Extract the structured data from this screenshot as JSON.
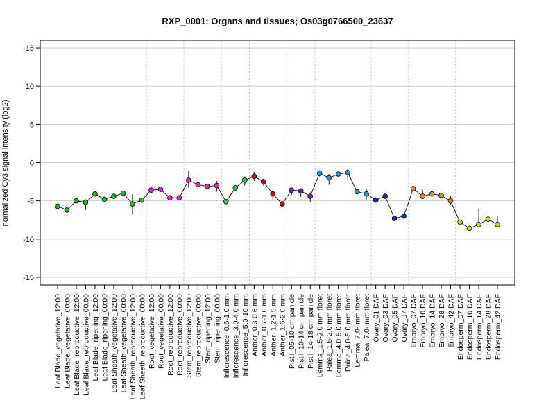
{
  "chart_data": {
    "type": "line",
    "title": "RXP_0001: Organs and tissues; Os03g0766500_23637",
    "xlabel": "",
    "ylabel": "normalized Cy3 signal intensity (log2)",
    "ylim": [
      -16,
      16
    ],
    "yticks": [
      -15,
      -10,
      -5,
      0,
      5,
      10,
      15
    ],
    "grid": true,
    "categories": [
      "Leaf Blade_vegetative_12:00",
      "Leaf Blade_vegetative_00:00",
      "Leaf Blade_reproductive_12:00",
      "Leaf Blade_reproductive_00:00",
      "Leaf Blade_ripening_12:00",
      "Leaf Blade_ripening_00:00",
      "Leaf Sheath_vegetative_12:00",
      "Leaf Sheath_vegetative_00:00",
      "Leaf Sheath_reproductive_12:00",
      "Leaf Sheath_reproductive_00:00",
      "Root_vegetative_12:00",
      "Root_vegetative_00:00",
      "Root_reproductive_12:00",
      "Root_reproductive_00:00",
      "Stem_reproductive_12:00",
      "Stem_reproductive_00:00",
      "Stem_ripening_12:00",
      "Stem_ripening_00:00",
      "Inflorescence_0.6-1.0 mm",
      "Inflorescence_3.0-4.0 mm",
      "Inflorescence_5.0-10 mm",
      "Anther_0.3-0.6 mm",
      "Anther_0.7-1.0 mm",
      "Anther_1.2-1.5 mm",
      "Anther_1.6-2.0 mm",
      "Pistil_05-10 cm panicle",
      "Pistil_10-14 cm panicle",
      "Pistil_14-18 cm panicle",
      "Lemma_1.5-2.0 mm floret",
      "Palea_1.5-2.0 mm floret",
      "Lemma_4.0-5.0 mm floret",
      "Palea_4.0-5.0 mm floret",
      "Lemma_7.0- mm floret",
      "Palea_7.0- mm floret",
      "Ovary_01 DAF",
      "Ovary_03 DAF",
      "Ovary_05 DAF",
      "Ovary_07 DAF",
      "Embryo_07 DAF",
      "Embryo_10 DAF",
      "Embryo_14 DAF",
      "Embryo_28 DAF",
      "Embryo_42 DAF",
      "Endosperm_07 DAF",
      "Endosperm_10 DAF",
      "Endosperm_14 DAF",
      "Endosperm_28 DAF",
      "Endosperm_42 DAF"
    ],
    "series": [
      {
        "values": [
          -5.7,
          -6.2,
          -5.0,
          -5.2,
          -4.1,
          -4.8,
          -4.4,
          -4.0,
          -5.4,
          -4.9,
          -3.6,
          -3.5,
          -4.6,
          -4.6,
          -2.3,
          -2.9,
          -3.1,
          -3.0,
          -5.1,
          -3.3,
          -2.3,
          -1.8,
          -2.5,
          -4.1,
          -5.4,
          -3.6,
          -3.7,
          -4.4,
          -1.4,
          -2.0,
          -1.5,
          -1.3,
          -3.8,
          -4.1,
          -4.9,
          -4.4,
          -7.3,
          -7.0,
          -3.4,
          -4.4,
          -4.1,
          -4.3,
          -5.0,
          -7.8,
          -8.6,
          -8.1,
          -7.4,
          -8.1
        ],
        "error_low": [
          -6.1,
          -6.4,
          -5.2,
          -6.2,
          -4.3,
          -5.0,
          -4.7,
          -4.3,
          -6.8,
          -6.4,
          -4.0,
          -3.8,
          -4.8,
          -4.8,
          -3.3,
          -3.8,
          -3.4,
          -3.8,
          -5.3,
          -3.6,
          -3.0,
          -2.4,
          -3.0,
          -4.8,
          -5.6,
          -4.2,
          -4.5,
          -5.2,
          -1.8,
          -2.9,
          -1.8,
          -2.3,
          -4.3,
          -4.8,
          -5.2,
          -4.6,
          -7.6,
          -7.3,
          -3.6,
          -4.6,
          -4.4,
          -4.5,
          -5.5,
          -8.1,
          -8.8,
          -8.5,
          -8.2,
          -8.4
        ],
        "error_high": [
          -5.4,
          -6.0,
          -4.8,
          -4.8,
          -3.9,
          -4.6,
          -4.1,
          -3.7,
          -4.1,
          -4.0,
          -3.2,
          -3.2,
          -4.4,
          -4.4,
          -1.1,
          -1.6,
          -2.8,
          -2.4,
          -4.8,
          -3.0,
          -1.8,
          -1.2,
          -2.1,
          -3.5,
          -5.2,
          -3.3,
          -3.5,
          -3.9,
          -1.0,
          -1.5,
          -1.2,
          -0.8,
          -3.5,
          -3.4,
          -4.6,
          -4.2,
          -7.0,
          -6.8,
          -3.1,
          -3.5,
          -3.8,
          -4.0,
          -4.4,
          -7.5,
          -8.4,
          -6.0,
          -6.4,
          -7.0
        ]
      }
    ],
    "point_colors": [
      "#22bb22",
      "#22bb22",
      "#22bb22",
      "#22bb22",
      "#22bb22",
      "#22bb22",
      "#22bb22",
      "#22bb22",
      "#22bb22",
      "#22bb22",
      "#dd22dd",
      "#dd22dd",
      "#dd22dd",
      "#dd22dd",
      "#ee22aa",
      "#ee22aa",
      "#ee22aa",
      "#ee22aa",
      "#22cc55",
      "#22cc55",
      "#22cc55",
      "#cc1111",
      "#cc1111",
      "#cc1111",
      "#cc1111",
      "#7722cc",
      "#7722cc",
      "#7722cc",
      "#2299dd",
      "#2299dd",
      "#2299dd",
      "#2299dd",
      "#2299dd",
      "#2299dd",
      "#1133aa",
      "#1133aa",
      "#1133aa",
      "#1133aa",
      "#ee8822",
      "#ee8822",
      "#ee8822",
      "#ee8822",
      "#ee8822",
      "#ccdd22",
      "#ccdd22",
      "#ccdd22",
      "#ccdd22",
      "#ccdd22"
    ],
    "group_separators_after": [
      9,
      13,
      17,
      20,
      24,
      27,
      33,
      37,
      42
    ]
  }
}
